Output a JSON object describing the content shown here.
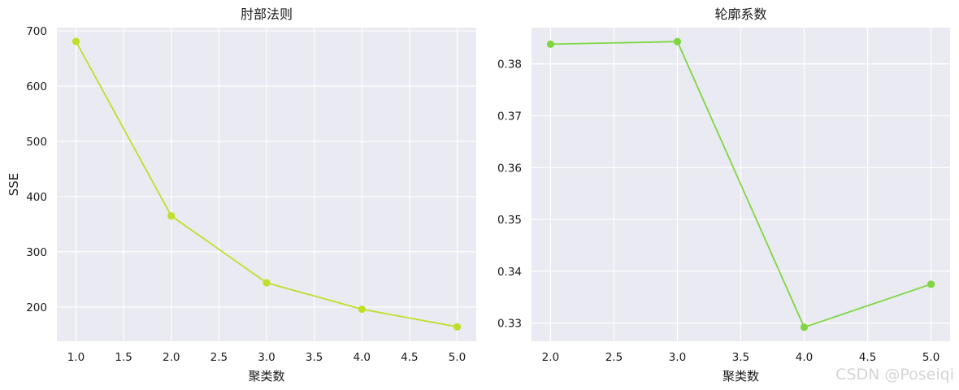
{
  "watermark": "CSDN @Poseiqi",
  "chart_data": [
    {
      "type": "line",
      "title": "肘部法则",
      "xlabel": "聚类数",
      "ylabel": "SSE",
      "x": [
        1.0,
        2.0,
        3.0,
        4.0,
        5.0
      ],
      "series": [
        {
          "values": [
            681,
            365,
            244,
            196,
            164
          ],
          "color": "#c0de2a",
          "marker": "circle"
        }
      ],
      "xlim": [
        0.8,
        5.2
      ],
      "ylim": [
        138,
        706
      ],
      "xticks": [
        1.0,
        1.5,
        2.0,
        2.5,
        3.0,
        3.5,
        4.0,
        4.5,
        5.0
      ],
      "xtick_labels": [
        "1.0",
        "1.5",
        "2.0",
        "2.5",
        "3.0",
        "3.5",
        "4.0",
        "4.5",
        "5.0"
      ],
      "yticks": [
        200,
        300,
        400,
        500,
        600,
        700
      ],
      "ytick_labels": [
        "200",
        "300",
        "400",
        "500",
        "600",
        "700"
      ],
      "grid": true,
      "background": "#eaeaf2"
    },
    {
      "type": "line",
      "title": "轮廓系数",
      "xlabel": "聚类数",
      "ylabel": "",
      "x": [
        2.0,
        3.0,
        4.0,
        5.0
      ],
      "series": [
        {
          "values": [
            0.3838,
            0.3843,
            0.3292,
            0.3375
          ],
          "color": "#7fd642",
          "marker": "circle"
        }
      ],
      "xlim": [
        1.85,
        5.15
      ],
      "ylim": [
        0.3265,
        0.387
      ],
      "xticks": [
        2.0,
        2.5,
        3.0,
        3.5,
        4.0,
        4.5,
        5.0
      ],
      "xtick_labels": [
        "2.0",
        "2.5",
        "3.0",
        "3.5",
        "4.0",
        "4.5",
        "5.0"
      ],
      "yticks": [
        0.33,
        0.34,
        0.35,
        0.36,
        0.37,
        0.38
      ],
      "ytick_labels": [
        "0.33",
        "0.34",
        "0.35",
        "0.36",
        "0.37",
        "0.38"
      ],
      "grid": true,
      "background": "#eaeaf2"
    }
  ]
}
